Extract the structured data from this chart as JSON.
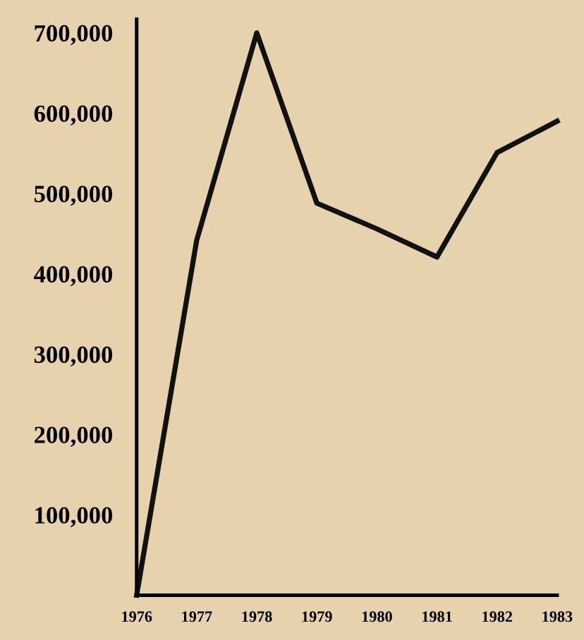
{
  "chart_data": {
    "type": "line",
    "x": [
      1976,
      1977,
      1978,
      1979,
      1980,
      1981,
      1982,
      1983
    ],
    "series": [
      {
        "color": "#111111",
        "values": [
          0,
          442000,
          700000,
          488000,
          456000,
          421000,
          551000,
          590000
        ]
      }
    ],
    "xlim": [
      1976,
      1983
    ],
    "xticks": [
      1976,
      1977,
      1978,
      1979,
      1980,
      1981,
      1982,
      1983
    ],
    "ylim": [
      0,
      717000
    ],
    "yticks": [
      {
        "value": 100000,
        "label": "100,000"
      },
      {
        "value": 200000,
        "label": "200,000"
      },
      {
        "value": 300000,
        "label": "300,000"
      },
      {
        "value": 400000,
        "label": "400,000"
      },
      {
        "value": 500000,
        "label": "500,000"
      },
      {
        "value": 600000,
        "label": "600,000"
      },
      {
        "value": 700000,
        "label": "700,000"
      }
    ],
    "grid": false,
    "legend": false,
    "marker": "none",
    "line_style": "solid"
  }
}
